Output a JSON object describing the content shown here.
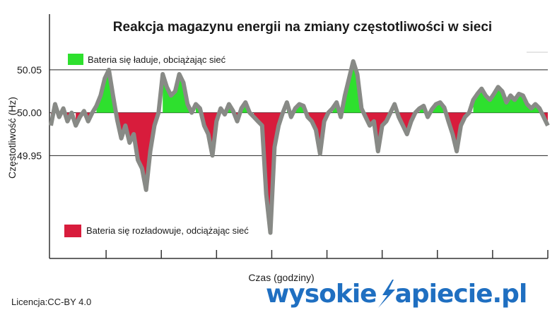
{
  "chart_data": {
    "type": "area",
    "title": "Reakcja magazynu energii na zmiany częstotliwości w sieci",
    "xlabel": "Czas (godziny)",
    "ylabel": "Częstotliwość (Hz)",
    "ylim": [
      49.83,
      50.115
    ],
    "baseline": 50.0,
    "y_ticks": [
      "50.05",
      "50.00",
      "49.95"
    ],
    "y_tick_values": [
      50.05,
      50.0,
      49.95
    ],
    "x_tick_count": 9,
    "grid": true,
    "legend": [
      {
        "name": "Bateria się ładuje, obciążając sieć",
        "color": "#2ee02e"
      },
      {
        "name": "Bateria się rozładowuje, odciążając sieć",
        "color": "#d81c3c"
      }
    ],
    "line_color": "#888a86",
    "x": [
      0,
      0.5,
      1,
      1.5,
      2,
      2.5,
      3,
      3.5,
      4,
      4.5,
      5,
      5.5,
      6,
      6.5,
      7,
      7.5,
      8,
      8.5,
      9,
      9.5,
      10,
      10.5,
      11,
      11.5,
      12,
      12.5,
      13,
      13.5,
      14,
      14.5,
      15,
      15.5,
      16,
      16.5,
      17,
      17.5,
      18,
      18.5,
      19,
      19.5,
      20,
      20.5,
      21,
      21.5,
      22,
      22.5,
      23,
      23.5,
      24,
      24.5,
      25,
      25.5,
      26,
      26.5,
      27,
      27.5,
      28,
      28.5,
      29,
      29.5,
      30,
      30.5,
      31,
      31.5,
      32,
      32.5,
      33,
      33.5,
      34,
      34.5,
      35,
      35.5,
      36,
      36.5,
      37,
      37.5,
      38,
      38.5,
      39,
      39.5,
      40,
      40.5,
      41,
      41.5,
      42,
      42.5,
      43,
      43.5,
      44,
      44.5,
      45,
      45.5,
      46,
      46.5,
      47,
      47.5,
      48,
      48.5,
      49,
      49.5,
      50,
      50.5,
      51,
      51.5,
      52,
      52.5,
      53,
      53.5,
      54,
      54.5,
      55,
      55.5,
      56,
      56.5,
      57,
      57.5,
      58,
      58.5,
      59,
      59.5,
      60
    ],
    "values": [
      49.985,
      50.01,
      49.995,
      50.005,
      49.99,
      50.0,
      49.985,
      49.995,
      50.002,
      49.99,
      50.0,
      50.008,
      50.02,
      50.04,
      50.05,
      50.02,
      49.992,
      49.97,
      49.985,
      49.965,
      49.975,
      49.945,
      49.935,
      49.91,
      49.955,
      49.985,
      50.0,
      50.045,
      50.03,
      50.02,
      50.025,
      50.045,
      50.035,
      50.01,
      50.0,
      50.01,
      50.005,
      49.985,
      49.975,
      49.95,
      49.99,
      50.005,
      49.998,
      50.01,
      50.002,
      49.99,
      50.005,
      50.012,
      50.0,
      49.995,
      49.99,
      49.985,
      49.905,
      49.86,
      49.96,
      49.985,
      50.0,
      50.012,
      49.995,
      50.005,
      50.01,
      50.008,
      49.995,
      49.99,
      49.98,
      49.952,
      49.99,
      50.0,
      50.005,
      50.012,
      49.995,
      50.02,
      50.04,
      50.06,
      50.045,
      50.005,
      49.995,
      49.985,
      49.99,
      49.955,
      49.985,
      49.99,
      50.0,
      50.01,
      49.995,
      49.985,
      49.975,
      49.99,
      50.0,
      50.005,
      50.008,
      49.995,
      50.004,
      50.01,
      50.012,
      50.006,
      49.99,
      49.975,
      49.955,
      49.985,
      49.995,
      50.0,
      50.015,
      50.022,
      50.028,
      50.02,
      50.015,
      50.022,
      50.03,
      50.025,
      50.012,
      50.02,
      50.015,
      50.022,
      50.02,
      50.01,
      50.005,
      50.01,
      50.005,
      49.995,
      49.985
    ]
  },
  "footer": {
    "license": "Licencja:CC-BY 4.0",
    "logo_left": "wysokie",
    "logo_right": "apiecie.pl"
  }
}
